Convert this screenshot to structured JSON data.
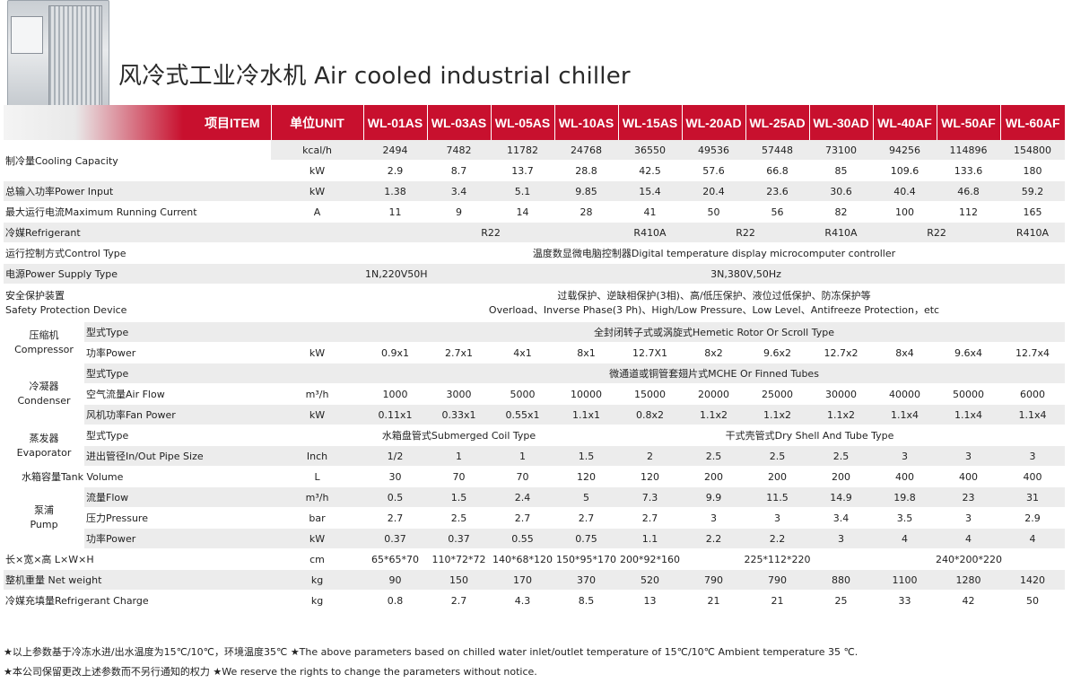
{
  "title": "风冷式工业冷水机 Air cooled industrial chiller",
  "colors": {
    "accent": "#c8102e",
    "band": "#ececec"
  },
  "header": {
    "item": "项目ITEM",
    "unit": "单位UNIT",
    "models": [
      "WL-01AS",
      "WL-03AS",
      "WL-05AS",
      "WL-10AS",
      "WL-15AS",
      "WL-20AD",
      "WL-25AD",
      "WL-30AD",
      "WL-40AF",
      "WL-50AF",
      "WL-60AF"
    ]
  },
  "rows": {
    "cooling": {
      "label": "制冷量Cooling Capacity",
      "unit1": "kcal/h",
      "v1": [
        "2494",
        "7482",
        "11782",
        "24768",
        "36550",
        "49536",
        "57448",
        "73100",
        "94256",
        "114896",
        "154800"
      ],
      "unit2": "kW",
      "v2": [
        "2.9",
        "8.7",
        "13.7",
        "28.8",
        "42.5",
        "57.6",
        "66.8",
        "85",
        "109.6",
        "133.6",
        "180"
      ]
    },
    "power_input": {
      "label": "总输入功率Power Input",
      "unit": "kW",
      "v": [
        "1.38",
        "3.4",
        "5.1",
        "9.85",
        "15.4",
        "20.4",
        "23.6",
        "30.6",
        "40.4",
        "46.8",
        "59.2"
      ]
    },
    "max_current": {
      "label": "最大运行电流Maximum Running Current",
      "unit": "A",
      "v": [
        "11",
        "9",
        "14",
        "28",
        "41",
        "50",
        "56",
        "82",
        "100",
        "112",
        "165"
      ]
    },
    "refrigerant": {
      "label": "冷媒Refrigerant",
      "seg1": "R22",
      "seg2": "R410A",
      "seg3": "R22",
      "seg4": "R410A",
      "seg5": "R22",
      "seg6": "R410A"
    },
    "control": {
      "label": "运行控制方式Control Type",
      "value": "温度数显微电脑控制器Digital temperature display microcomputer controller"
    },
    "power_supply": {
      "label": "电源Power Supply Type",
      "seg1": "1N,220V50Hz",
      "seg2": "3N,380V,50Hz"
    },
    "safety": {
      "label_cn": "安全保护装置",
      "label_en": "Safety Protection Device",
      "value_cn": "过载保护、逆缺相保护(3相)、高/低压保护、液位过低保护、防冻保护等",
      "value_en": "Overload、Inverse Phase(3 Ph)、High/Low Pressure、Low Level、Antifreeze Protection，etc"
    },
    "compressor": {
      "group_cn": "压缩机",
      "group_en": "Compressor",
      "type_label": "型式Type",
      "type_value": "全封闭转子式或涡旋式Hemetic Rotor Or Scroll Type",
      "power_label": "功率Power",
      "power_unit": "kW",
      "power_v": [
        "0.9x1",
        "2.7x1",
        "4x1",
        "8x1",
        "12.7X1",
        "8x2",
        "9.6x2",
        "12.7x2",
        "8x4",
        "9.6x4",
        "12.7x4"
      ]
    },
    "condenser": {
      "group_cn": "冷凝器",
      "group_en": "Condenser",
      "type_label": "型式Type",
      "type_value": "微通道或铜管套翅片式MCHE Or Finned Tubes",
      "air_label": "空气流量Air Flow",
      "air_unit": "m³/h",
      "air_v": [
        "1000",
        "3000",
        "5000",
        "10000",
        "15000",
        "20000",
        "25000",
        "30000",
        "40000",
        "50000",
        "6000"
      ],
      "fan_label": "风机功率Fan Power",
      "fan_unit": "kW",
      "fan_v": [
        "0.11x1",
        "0.33x1",
        "0.55x1",
        "1.1x1",
        "0.8x2",
        "1.1x2",
        "1.1x2",
        "1.1x2",
        "1.1x4",
        "1.1x4",
        "1.1x4"
      ]
    },
    "evaporator": {
      "group_cn": "蒸发器",
      "group_en": "Evaporator",
      "type_label": "型式Type",
      "type_seg1": "水箱盘管式Submerged Coil Type",
      "type_seg2": "干式壳管式Dry Shell And Tube Type",
      "pipe_label": "进出管径In/Out Pipe Size",
      "pipe_unit": "Inch",
      "pipe_v": [
        "1/2",
        "1",
        "1",
        "1.5",
        "2",
        "2.5",
        "2.5",
        "2.5",
        "3",
        "3",
        "3"
      ]
    },
    "tank": {
      "label": "水箱容量Tank Volume",
      "unit": "L",
      "v": [
        "30",
        "70",
        "70",
        "120",
        "120",
        "200",
        "200",
        "200",
        "400",
        "400",
        "400"
      ]
    },
    "pump": {
      "group_cn": "泵浦",
      "group_en": "Pump",
      "flow_label": "流量Flow",
      "flow_unit": "m³/h",
      "flow_v": [
        "0.5",
        "1.5",
        "2.4",
        "5",
        "7.3",
        "9.9",
        "11.5",
        "14.9",
        "19.8",
        "23",
        "31"
      ],
      "pressure_label": "压力Pressure",
      "pressure_unit": "bar",
      "pressure_v": [
        "2.7",
        "2.5",
        "2.7",
        "2.7",
        "2.7",
        "3",
        "3",
        "3.4",
        "3.5",
        "3",
        "2.9"
      ],
      "power_label": "功率Power",
      "power_unit": "kW",
      "power_v": [
        "0.37",
        "0.37",
        "0.55",
        "0.75",
        "1.1",
        "2.2",
        "2.2",
        "3",
        "4",
        "4",
        "4"
      ]
    },
    "dimension": {
      "label": "长×宽×高 L×W×H",
      "unit": "cm",
      "v1": "65*65*70",
      "v2": "110*72*72",
      "v3": "140*68*120",
      "v4": "150*95*170",
      "v5": "200*92*160",
      "v6": "225*112*220",
      "v7": "240*200*220"
    },
    "weight": {
      "label": "整机重量 Net weight",
      "unit": "kg",
      "v": [
        "90",
        "150",
        "170",
        "370",
        "520",
        "790",
        "790",
        "880",
        "1100",
        "1280",
        "1420"
      ]
    },
    "charge": {
      "label": "冷媒充填量Refrigerant Charge",
      "unit": "kg",
      "v": [
        "0.8",
        "2.7",
        "4.3",
        "8.5",
        "13",
        "21",
        "21",
        "25",
        "33",
        "42",
        "50"
      ]
    }
  },
  "notes": [
    "★以上参数基于冷冻水进/出水温度为15℃/10℃，环境温度35℃ ★The above parameters based on chilled water inlet/outlet temperature of 15℃/10℃ Ambient temperature 35 ℃.",
    "★本公司保留更改上述参数而不另行通知的权力 ★We reserve the rights to change the parameters without notice."
  ]
}
